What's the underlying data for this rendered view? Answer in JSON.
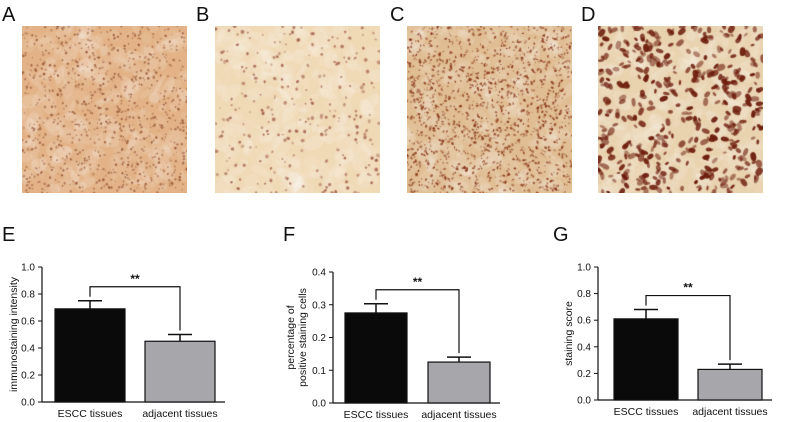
{
  "panel_labels": [
    "A",
    "B",
    "C",
    "D",
    "E",
    "F",
    "G"
  ],
  "colors": {
    "escc_bar": "#0a0a0a",
    "adjacent_bar": "#a6a6ab",
    "A_bg": "#e3b387",
    "A_dot": "#9a5a3a",
    "B_bg": "#f0d9b5",
    "B_dot": "#a86a55",
    "C_bg": "#e0bd92",
    "C_dot": "#8a3a1c",
    "D_bg": "#e9d2ae",
    "D_dot": "#6e1e0e"
  },
  "chart_data": [
    {
      "type": "bar",
      "panel": "E",
      "categories": [
        "ESCC tissues",
        "adjacent tissues"
      ],
      "values": [
        0.69,
        0.45
      ],
      "errors": [
        0.06,
        0.05
      ],
      "ylabel": "immunostaining intensity",
      "ylim": [
        0,
        1.0
      ],
      "yticks": [
        "0.0",
        "0.2",
        "0.4",
        "0.6",
        "0.8",
        "1.0"
      ],
      "significance": "**"
    },
    {
      "type": "bar",
      "panel": "F",
      "categories": [
        "ESCC tissues",
        "adjacent tissues"
      ],
      "values": [
        0.275,
        0.125
      ],
      "errors": [
        0.028,
        0.015
      ],
      "ylabel_lines": [
        "percentage of",
        "positive staining cells"
      ],
      "ylim": [
        0,
        0.4
      ],
      "yticks": [
        "0.0",
        "0.1",
        "0.2",
        "0.3",
        "0.4"
      ],
      "significance": "**"
    },
    {
      "type": "bar",
      "panel": "G",
      "categories": [
        "ESCC tissues",
        "adjacent tissues"
      ],
      "values": [
        0.61,
        0.23
      ],
      "errors": [
        0.07,
        0.04
      ],
      "ylabel": "staining score",
      "ylim": [
        0,
        1.0
      ],
      "yticks": [
        "0.0",
        "0.2",
        "0.4",
        "0.6",
        "0.8",
        "1.0"
      ],
      "significance": "**"
    }
  ]
}
